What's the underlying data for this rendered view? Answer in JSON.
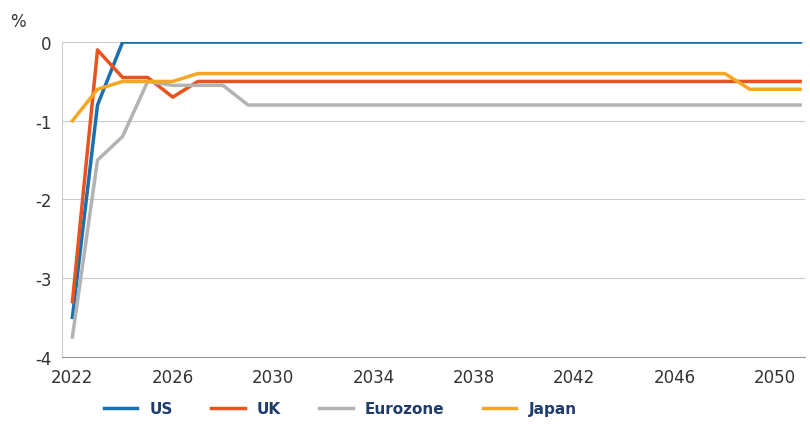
{
  "chart_data": {
    "type": "line",
    "ylabel": "%",
    "x": [
      2022,
      2023,
      2024,
      2025,
      2026,
      2027,
      2028,
      2029,
      2030,
      2031,
      2032,
      2033,
      2034,
      2035,
      2036,
      2037,
      2038,
      2039,
      2040,
      2041,
      2042,
      2043,
      2044,
      2045,
      2046,
      2047,
      2048,
      2049,
      2050,
      2051
    ],
    "series": [
      {
        "name": "US",
        "color": "#1a6faf",
        "values": [
          -3.5,
          -0.8,
          0,
          0,
          0,
          0,
          0,
          0,
          0,
          0,
          0,
          0,
          0,
          0,
          0,
          0,
          0,
          0,
          0,
          0,
          0,
          0,
          0,
          0,
          0,
          0,
          0,
          0,
          0,
          0
        ]
      },
      {
        "name": "UK",
        "color": "#e8531f",
        "values": [
          -3.3,
          -0.1,
          -0.45,
          -0.45,
          -0.7,
          -0.5,
          -0.5,
          -0.5,
          -0.5,
          -0.5,
          -0.5,
          -0.5,
          -0.5,
          -0.5,
          -0.5,
          -0.5,
          -0.5,
          -0.5,
          -0.5,
          -0.5,
          -0.5,
          -0.5,
          -0.5,
          -0.5,
          -0.5,
          -0.5,
          -0.5,
          -0.5,
          -0.5,
          -0.5
        ]
      },
      {
        "name": "Eurozone",
        "color": "#b3b3b3",
        "values": [
          -3.75,
          -1.5,
          -1.2,
          -0.5,
          -0.55,
          -0.55,
          -0.55,
          -0.8,
          -0.8,
          -0.8,
          -0.8,
          -0.8,
          -0.8,
          -0.8,
          -0.8,
          -0.8,
          -0.8,
          -0.8,
          -0.8,
          -0.8,
          -0.8,
          -0.8,
          -0.8,
          -0.8,
          -0.8,
          -0.8,
          -0.8,
          -0.8,
          -0.8,
          -0.8
        ]
      },
      {
        "name": "Japan",
        "color": "#f5a623",
        "values": [
          -1.0,
          -0.6,
          -0.5,
          -0.5,
          -0.5,
          -0.4,
          -0.4,
          -0.4,
          -0.4,
          -0.4,
          -0.4,
          -0.4,
          -0.4,
          -0.4,
          -0.4,
          -0.4,
          -0.4,
          -0.4,
          -0.4,
          -0.4,
          -0.4,
          -0.4,
          -0.4,
          -0.4,
          -0.4,
          -0.4,
          -0.4,
          -0.6,
          -0.6,
          -0.6
        ]
      }
    ],
    "xlim": [
      2021.6,
      2051.2
    ],
    "xticks": [
      2022,
      2026,
      2030,
      2034,
      2038,
      2042,
      2046,
      2050
    ],
    "ylim": [
      -4,
      0
    ],
    "yticks": [
      -4,
      -3,
      -2,
      -1,
      0
    ],
    "grid": true,
    "legend": "bottom"
  }
}
